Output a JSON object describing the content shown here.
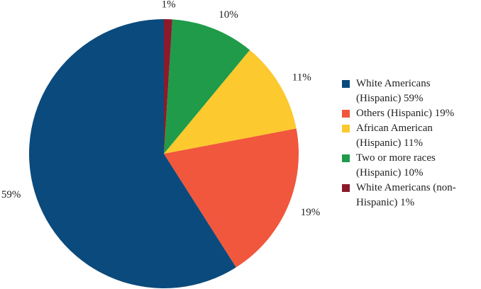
{
  "chart_data": {
    "type": "pie",
    "categories": [
      "White Americans (Hispanic)  59%",
      "Others (Hispanic) 19%",
      "African American (Hispanic) 11%",
      "Two or more races (Hispanic) 10%",
      "White Americans (non-Hispanic) 1%"
    ],
    "values": [
      59,
      19,
      11,
      10,
      1
    ],
    "value_labels": [
      "59%",
      "19%",
      "11%",
      "10%",
      "1%"
    ],
    "colors": [
      "#0b4a7c",
      "#f0573c",
      "#fcc92e",
      "#1f9b4a",
      "#8c1a2c"
    ]
  }
}
